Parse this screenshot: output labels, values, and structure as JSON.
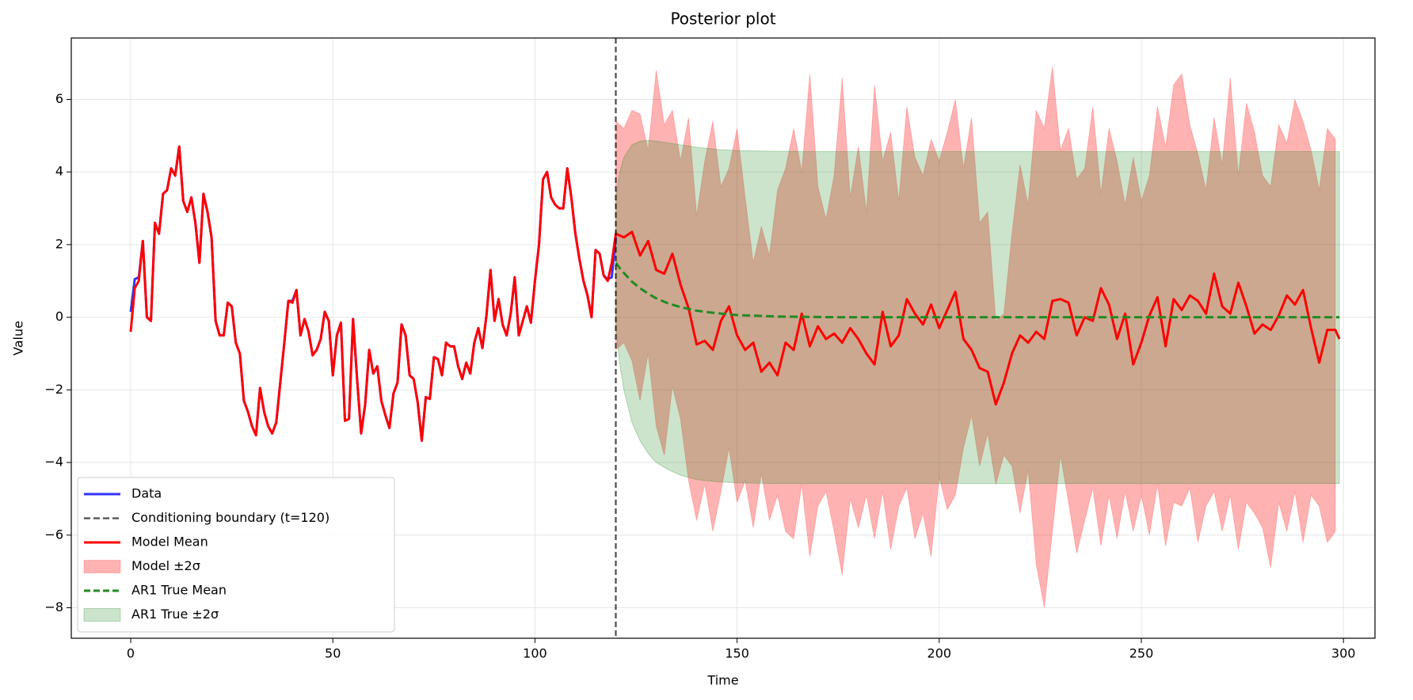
{
  "chart_data": {
    "type": "line",
    "title": "Posterior plot",
    "x_label": "Time",
    "y_label": "Value",
    "xlim": [
      -14.7,
      307.8
    ],
    "ylim": [
      -8.84,
      7.69
    ],
    "xticks": [
      0,
      50,
      100,
      150,
      200,
      250,
      300
    ],
    "yticks": [
      {
        "value": -8,
        "label": "−8"
      },
      {
        "value": -6,
        "label": "−6"
      },
      {
        "value": -4,
        "label": "−4"
      },
      {
        "value": -2,
        "label": "−2"
      },
      0,
      2,
      4,
      6
    ],
    "grid": true,
    "legend": "lower left",
    "series": [
      {
        "name": "Data",
        "kind": "line",
        "color": "rgba(0,0,255,0.8)",
        "dash": false,
        "x": [
          0,
          1,
          2,
          3,
          4,
          5,
          6,
          7,
          8,
          9,
          10,
          11,
          12,
          13,
          14,
          15,
          16,
          17,
          18,
          19,
          20,
          21,
          22,
          23,
          24,
          25,
          26,
          27,
          28,
          29,
          30,
          31,
          32,
          33,
          34,
          35,
          36,
          37,
          38,
          39,
          40,
          41,
          42,
          43,
          44,
          45,
          46,
          47,
          48,
          49,
          50,
          51,
          52,
          53,
          54,
          55,
          56,
          57,
          58,
          59,
          60,
          61,
          62,
          63,
          64,
          65,
          66,
          67,
          68,
          69,
          70,
          71,
          72,
          73,
          74,
          75,
          76,
          77,
          78,
          79,
          80,
          81,
          82,
          83,
          84,
          85,
          86,
          87,
          88,
          89,
          90,
          91,
          92,
          93,
          94,
          95,
          96,
          97,
          98,
          99,
          100,
          101,
          102,
          103,
          104,
          105,
          106,
          107,
          108,
          109,
          110,
          111,
          112,
          113,
          114,
          115,
          116,
          117,
          118,
          119,
          120
        ],
        "values": [
          0.15,
          1.05,
          1.1,
          2.1,
          0,
          -0.1,
          2.6,
          2.3,
          3.4,
          3.5,
          4.1,
          3.9,
          4.7,
          3.2,
          2.9,
          3.3,
          2.6,
          1.5,
          3.4,
          2.9,
          2.2,
          -0.1,
          -0.5,
          -0.5,
          0.4,
          0.3,
          -0.7,
          -1.0,
          -2.3,
          -2.6,
          -3.0,
          -3.25,
          -1.95,
          -2.6,
          -3.0,
          -3.2,
          -2.9,
          -1.8,
          -0.7,
          0.45,
          0.45,
          0.75,
          -0.5,
          -0.05,
          -0.4,
          -1.05,
          -0.9,
          -0.6,
          0.15,
          -0.1,
          -1.6,
          -0.5,
          -0.15,
          -2.85,
          -2.8,
          -0.05,
          -1.7,
          -3.2,
          -2.4,
          -0.9,
          -1.55,
          -1.35,
          -2.3,
          -2.7,
          -3.05,
          -2.1,
          -1.8,
          -0.2,
          -0.5,
          -1.6,
          -1.7,
          -2.35,
          -3.4,
          -2.2,
          -2.25,
          -1.1,
          -1.15,
          -1.6,
          -0.7,
          -0.8,
          -0.8,
          -1.35,
          -1.7,
          -1.25,
          -1.55,
          -0.7,
          -0.3,
          -0.85,
          0.05,
          1.3,
          -0.1,
          0.5,
          -0.2,
          -0.5,
          0.1,
          1.1,
          -0.5,
          -0.1,
          0.3,
          -0.15,
          1.0,
          2.0,
          3.8,
          4.0,
          3.3,
          3.1,
          3.0,
          3.0,
          4.1,
          3.3,
          2.3,
          1.6,
          1.0,
          0.6,
          0.0,
          1.85,
          1.75,
          1.15,
          1.05,
          1.1,
          2.2
        ]
      },
      {
        "name": "Conditioning boundary (t=120)",
        "kind": "vline",
        "color": "rgba(0,0,0,0.7)",
        "dash": true,
        "value": 120
      },
      {
        "name": "Model Mean",
        "kind": "line",
        "color": "#ff0000",
        "dash": false,
        "x": [
          0,
          1,
          2,
          3,
          4,
          5,
          6,
          7,
          8,
          9,
          10,
          11,
          12,
          13,
          14,
          15,
          16,
          17,
          18,
          19,
          20,
          21,
          22,
          23,
          24,
          25,
          26,
          27,
          28,
          29,
          30,
          31,
          32,
          33,
          34,
          35,
          36,
          37,
          38,
          39,
          40,
          41,
          42,
          43,
          44,
          45,
          46,
          47,
          48,
          49,
          50,
          51,
          52,
          53,
          54,
          55,
          56,
          57,
          58,
          59,
          60,
          61,
          62,
          63,
          64,
          65,
          66,
          67,
          68,
          69,
          70,
          71,
          72,
          73,
          74,
          75,
          76,
          77,
          78,
          79,
          80,
          81,
          82,
          83,
          84,
          85,
          86,
          87,
          88,
          89,
          90,
          91,
          92,
          93,
          94,
          95,
          96,
          97,
          98,
          99,
          100,
          101,
          102,
          103,
          104,
          105,
          106,
          107,
          108,
          109,
          110,
          111,
          112,
          113,
          114,
          115,
          116,
          117,
          118,
          119,
          120,
          122,
          124,
          126,
          128,
          130,
          132,
          134,
          136,
          138,
          140,
          142,
          144,
          146,
          148,
          150,
          152,
          154,
          156,
          158,
          160,
          162,
          164,
          166,
          168,
          170,
          172,
          174,
          176,
          178,
          180,
          182,
          184,
          186,
          188,
          190,
          192,
          194,
          196,
          198,
          200,
          202,
          204,
          206,
          208,
          210,
          212,
          214,
          216,
          218,
          220,
          222,
          224,
          226,
          228,
          230,
          232,
          234,
          236,
          238,
          240,
          242,
          244,
          246,
          248,
          250,
          252,
          254,
          256,
          258,
          260,
          262,
          264,
          266,
          268,
          270,
          272,
          274,
          276,
          278,
          280,
          282,
          284,
          286,
          288,
          290,
          292,
          294,
          296,
          298,
          299
        ],
        "values": [
          -0.4,
          0.8,
          1.0,
          2.1,
          0,
          -0.1,
          2.6,
          2.3,
          3.4,
          3.5,
          4.1,
          3.9,
          4.7,
          3.2,
          2.9,
          3.3,
          2.6,
          1.5,
          3.4,
          2.9,
          2.2,
          -0.1,
          -0.5,
          -0.5,
          0.4,
          0.3,
          -0.7,
          -1.0,
          -2.3,
          -2.6,
          -3.0,
          -3.25,
          -1.95,
          -2.6,
          -3.0,
          -3.2,
          -2.9,
          -1.8,
          -0.7,
          0.45,
          0.4,
          0.75,
          -0.5,
          -0.05,
          -0.4,
          -1.05,
          -0.9,
          -0.6,
          0.15,
          -0.1,
          -1.6,
          -0.5,
          -0.15,
          -2.85,
          -2.8,
          -0.05,
          -1.7,
          -3.2,
          -2.4,
          -0.9,
          -1.55,
          -1.35,
          -2.3,
          -2.7,
          -3.05,
          -2.1,
          -1.8,
          -0.2,
          -0.5,
          -1.6,
          -1.7,
          -2.35,
          -3.4,
          -2.2,
          -2.25,
          -1.1,
          -1.15,
          -1.6,
          -0.7,
          -0.8,
          -0.8,
          -1.35,
          -1.7,
          -1.25,
          -1.55,
          -0.7,
          -0.3,
          -0.85,
          0.05,
          1.3,
          -0.1,
          0.5,
          -0.2,
          -0.5,
          0.1,
          1.1,
          -0.5,
          -0.1,
          0.3,
          -0.15,
          1.0,
          2.0,
          3.8,
          4.0,
          3.3,
          3.1,
          3.0,
          3.0,
          4.1,
          3.3,
          2.3,
          1.6,
          1.0,
          0.6,
          0.0,
          1.85,
          1.75,
          1.15,
          1.0,
          1.5,
          2.3,
          2.2,
          2.35,
          1.7,
          2.1,
          1.3,
          1.2,
          1.75,
          0.9,
          0.25,
          -0.75,
          -0.65,
          -0.9,
          -0.1,
          0.3,
          -0.5,
          -0.9,
          -0.7,
          -1.5,
          -1.25,
          -1.6,
          -0.7,
          -0.9,
          0.1,
          -0.8,
          -0.25,
          -0.6,
          -0.45,
          -0.7,
          -0.3,
          -0.6,
          -1.0,
          -1.3,
          0.15,
          -0.8,
          -0.5,
          0.5,
          0.1,
          -0.2,
          0.35,
          -0.3,
          0.2,
          0.7,
          -0.6,
          -0.9,
          -1.4,
          -1.5,
          -2.4,
          -1.8,
          -1.0,
          -0.5,
          -0.7,
          -0.4,
          -0.6,
          0.45,
          0.5,
          0.4,
          -0.5,
          0.0,
          -0.1,
          0.8,
          0.35,
          -0.6,
          0.1,
          -1.3,
          -0.7,
          0.05,
          0.55,
          -0.8,
          0.5,
          0.2,
          0.6,
          0.45,
          0.1,
          1.2,
          0.3,
          0.1,
          0.95,
          0.3,
          -0.45,
          -0.2,
          -0.35,
          0.05,
          0.6,
          0.35,
          0.75,
          -0.3,
          -1.25,
          -0.35,
          -0.35,
          -0.6
        ]
      },
      {
        "name": "Model ±2σ",
        "kind": "band",
        "color": "rgba(255,0,0,0.3)",
        "edge": "rgba(255,0,0,0.2)",
        "x": [
          120,
          122,
          124,
          126,
          128,
          130,
          132,
          134,
          136,
          138,
          140,
          142,
          144,
          146,
          148,
          150,
          152,
          154,
          156,
          158,
          160,
          162,
          164,
          166,
          168,
          170,
          172,
          174,
          176,
          178,
          180,
          182,
          184,
          186,
          188,
          190,
          192,
          194,
          196,
          198,
          200,
          202,
          204,
          206,
          208,
          210,
          212,
          214,
          216,
          218,
          220,
          222,
          224,
          226,
          228,
          230,
          232,
          234,
          236,
          238,
          240,
          242,
          244,
          246,
          248,
          250,
          252,
          254,
          256,
          258,
          260,
          262,
          264,
          266,
          268,
          270,
          272,
          274,
          276,
          278,
          280,
          282,
          284,
          286,
          288,
          290,
          292,
          294,
          296,
          298
        ],
        "upper": [
          5.4,
          5.2,
          5.7,
          5.6,
          4.6,
          6.8,
          5.3,
          5.7,
          4.3,
          5.5,
          2.8,
          4.3,
          5.4,
          3.6,
          4.1,
          5.2,
          3.3,
          1.5,
          2.5,
          1.7,
          3.5,
          4.1,
          5.2,
          4.0,
          6.7,
          3.6,
          2.7,
          3.9,
          6.6,
          3.3,
          4.7,
          2.9,
          6.4,
          4.3,
          5.1,
          3.2,
          5.8,
          4.4,
          3.9,
          4.9,
          4.3,
          5.1,
          6.0,
          4.1,
          5.5,
          2.6,
          2.9,
          -0.1,
          0.1,
          2.3,
          4.2,
          3.1,
          5.7,
          5.2,
          6.9,
          4.6,
          5.2,
          3.8,
          4.1,
          5.8,
          3.4,
          5.2,
          4.3,
          3.1,
          4.4,
          3.2,
          3.9,
          5.8,
          4.7,
          6.4,
          6.7,
          5.3,
          4.5,
          3.5,
          5.5,
          4.2,
          6.6,
          3.9,
          5.9,
          5.1,
          3.9,
          3.6,
          5.3,
          4.8,
          6.0,
          5.4,
          4.6,
          3.5,
          5.2,
          4.9
        ],
        "lower": [
          -0.9,
          -0.7,
          -1.2,
          -2.3,
          -1.0,
          -3.0,
          -3.8,
          -1.9,
          -2.8,
          -4.5,
          -5.6,
          -4.6,
          -5.9,
          -4.8,
          -3.6,
          -5.1,
          -4.5,
          -5.8,
          -4.3,
          -5.6,
          -4.9,
          -5.9,
          -6.1,
          -4.6,
          -6.6,
          -5.2,
          -4.8,
          -5.9,
          -7.1,
          -5.0,
          -5.8,
          -4.9,
          -6.1,
          -4.8,
          -6.4,
          -5.2,
          -4.7,
          -6.1,
          -5.4,
          -6.6,
          -4.4,
          -5.3,
          -4.9,
          -3.6,
          -2.7,
          -4.1,
          -3.2,
          -4.6,
          -3.8,
          -4.1,
          -5.4,
          -4.2,
          -6.8,
          -8.0,
          -5.9,
          -3.8,
          -5.1,
          -6.5,
          -5.6,
          -4.7,
          -6.3,
          -4.9,
          -6.1,
          -4.8,
          -5.9,
          -4.9,
          -6.0,
          -4.6,
          -6.3,
          -5.1,
          -5.2,
          -4.7,
          -6.2,
          -5.2,
          -4.8,
          -5.9,
          -4.9,
          -6.4,
          -5.1,
          -5.4,
          -5.8,
          -6.9,
          -5.1,
          -5.9,
          -4.8,
          -6.2,
          -4.9,
          -5.2,
          -6.2,
          -5.9
        ]
      },
      {
        "name": "AR1 True Mean",
        "kind": "line",
        "color": "#228b22",
        "dash": true,
        "x": [
          120,
          121,
          122,
          124,
          126,
          128,
          130,
          133,
          136,
          140,
          145,
          150,
          160,
          175,
          200,
          250,
          299
        ],
        "values": [
          1.5,
          1.35,
          1.22,
          0.98,
          0.8,
          0.65,
          0.52,
          0.38,
          0.28,
          0.18,
          0.11,
          0.06,
          0.02,
          0.0,
          0.0,
          0.0,
          0.0
        ]
      },
      {
        "name": "AR1 True ±2σ",
        "kind": "band",
        "color": "rgba(34,139,34,0.23)",
        "edge": "rgba(34,139,34,0.3)",
        "x": [
          120,
          121,
          122,
          124,
          126,
          128,
          130,
          133,
          136,
          140,
          145,
          150,
          160,
          175,
          200,
          250,
          299
        ],
        "upper": [
          3.3,
          4.0,
          4.4,
          4.75,
          4.85,
          4.87,
          4.85,
          4.8,
          4.75,
          4.68,
          4.62,
          4.59,
          4.57,
          4.56,
          4.56,
          4.56,
          4.56
        ],
        "lower": [
          -0.3,
          -1.3,
          -2.0,
          -2.9,
          -3.4,
          -3.75,
          -4.0,
          -4.2,
          -4.35,
          -4.47,
          -4.53,
          -4.56,
          -4.58,
          -4.58,
          -4.58,
          -4.58,
          -4.58
        ]
      }
    ]
  }
}
